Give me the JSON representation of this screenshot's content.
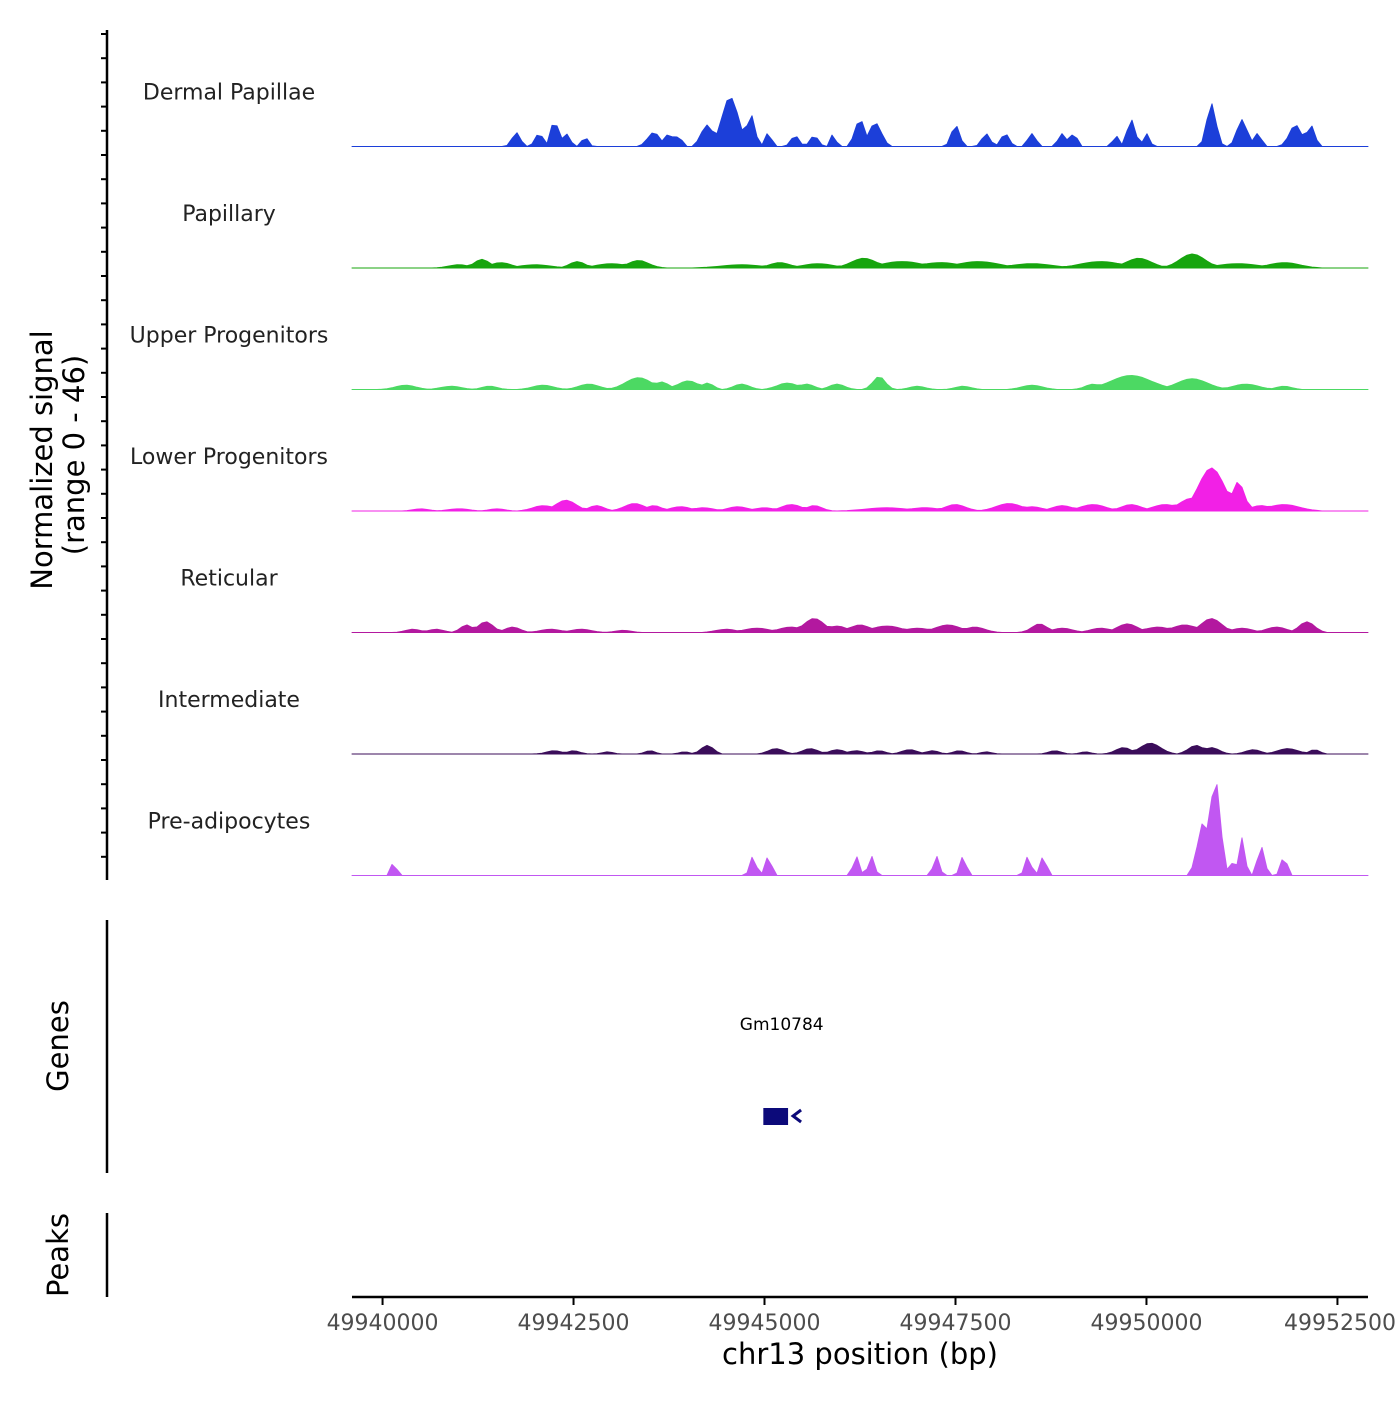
{
  "chart_data": {
    "type": "area",
    "xlabel": "chr13 position (bp)",
    "ylabel_line1": "Normalized signal",
    "ylabel_line2": "(range 0 - 46)",
    "y_range": [
      0,
      46
    ],
    "xlim": [
      49939600,
      49952900
    ],
    "x_ticks": [
      49940000,
      49942500,
      49945000,
      49947500,
      49950000,
      49952500
    ],
    "x_tick_labels": [
      "49940000",
      "49942500",
      "49945000",
      "49947500",
      "49950000",
      "49952500"
    ],
    "tracks": [
      {
        "name": "Dermal Papillae",
        "color": "#1c3fd9",
        "peaks": [
          [
            49941750,
            13,
            8
          ],
          [
            49942050,
            12,
            8
          ],
          [
            49942250,
            25,
            7
          ],
          [
            49942400,
            12,
            8
          ],
          [
            49942650,
            9,
            6
          ],
          [
            49943550,
            13,
            12
          ],
          [
            49943750,
            12,
            8
          ],
          [
            49943880,
            12,
            5
          ],
          [
            49944250,
            20,
            12
          ],
          [
            49944550,
            46,
            16
          ],
          [
            49944820,
            30,
            8
          ],
          [
            49945050,
            13,
            6
          ],
          [
            49945400,
            10,
            8
          ],
          [
            49945650,
            10,
            8
          ],
          [
            49945900,
            12,
            5
          ],
          [
            49946250,
            25,
            10
          ],
          [
            49946450,
            22,
            12
          ],
          [
            49947500,
            20,
            8
          ],
          [
            49947900,
            12,
            8
          ],
          [
            49948150,
            12,
            8
          ],
          [
            49948500,
            12,
            8
          ],
          [
            49948900,
            12,
            8
          ],
          [
            49949050,
            13,
            6
          ],
          [
            49949600,
            10,
            6
          ],
          [
            49949800,
            25,
            8
          ],
          [
            49950000,
            12,
            6
          ],
          [
            49950850,
            40,
            9
          ],
          [
            49951250,
            25,
            10
          ],
          [
            49951450,
            12,
            8
          ],
          [
            49951950,
            20,
            12
          ],
          [
            49952150,
            20,
            8
          ]
        ]
      },
      {
        "name": "Papillary",
        "color": "#17a50e",
        "peaks": [
          [
            49941000,
            3,
            20
          ],
          [
            49941300,
            8,
            15
          ],
          [
            49941550,
            5,
            20
          ],
          [
            49942000,
            3,
            30
          ],
          [
            49942550,
            6,
            15
          ],
          [
            49943000,
            4,
            30
          ],
          [
            49943350,
            7,
            20
          ],
          [
            49944700,
            3,
            40
          ],
          [
            49945200,
            5,
            20
          ],
          [
            49945700,
            4,
            30
          ],
          [
            49946300,
            9,
            25
          ],
          [
            49946800,
            6,
            40
          ],
          [
            49947300,
            5,
            40
          ],
          [
            49947800,
            6,
            40
          ],
          [
            49948500,
            4,
            40
          ],
          [
            49949400,
            6,
            40
          ],
          [
            49949900,
            9,
            25
          ],
          [
            49950600,
            13,
            25
          ],
          [
            49951200,
            4,
            40
          ],
          [
            49951800,
            5,
            30
          ]
        ]
      },
      {
        "name": "Upper Progenitors",
        "color": "#4cd963",
        "peaks": [
          [
            49940300,
            4,
            20
          ],
          [
            49940900,
            3,
            20
          ],
          [
            49941400,
            3,
            15
          ],
          [
            49942100,
            4,
            20
          ],
          [
            49942700,
            5,
            20
          ],
          [
            49943350,
            11,
            25
          ],
          [
            49943650,
            7,
            15
          ],
          [
            49944000,
            8,
            20
          ],
          [
            49944250,
            6,
            12
          ],
          [
            49944700,
            5,
            15
          ],
          [
            49945300,
            6,
            20
          ],
          [
            49945550,
            5,
            15
          ],
          [
            49945950,
            5,
            15
          ],
          [
            49946500,
            12,
            12
          ],
          [
            49947000,
            3,
            15
          ],
          [
            49947600,
            3,
            15
          ],
          [
            49948500,
            4,
            20
          ],
          [
            49949300,
            5,
            15
          ],
          [
            49949800,
            13,
            40
          ],
          [
            49950600,
            10,
            30
          ],
          [
            49951300,
            5,
            25
          ],
          [
            49951800,
            3,
            15
          ]
        ]
      },
      {
        "name": "Lower Progenitors",
        "color": "#f220e6",
        "peaks": [
          [
            49940500,
            2,
            15
          ],
          [
            49941000,
            2,
            20
          ],
          [
            49941500,
            2,
            15
          ],
          [
            49942100,
            5,
            20
          ],
          [
            49942400,
            10,
            20
          ],
          [
            49942800,
            5,
            15
          ],
          [
            49943300,
            7,
            20
          ],
          [
            49943550,
            5,
            15
          ],
          [
            49943900,
            4,
            20
          ],
          [
            49944200,
            3,
            20
          ],
          [
            49944650,
            4,
            20
          ],
          [
            49945000,
            3,
            20
          ],
          [
            49945350,
            6,
            20
          ],
          [
            49945650,
            5,
            15
          ],
          [
            49946600,
            3,
            40
          ],
          [
            49947100,
            3,
            30
          ],
          [
            49947500,
            6,
            20
          ],
          [
            49948200,
            7,
            25
          ],
          [
            49948500,
            4,
            20
          ],
          [
            49948900,
            5,
            20
          ],
          [
            49949300,
            6,
            25
          ],
          [
            49949800,
            6,
            20
          ],
          [
            49950250,
            6,
            25
          ],
          [
            49950600,
            12,
            25
          ],
          [
            49950850,
            40,
            25
          ],
          [
            49951200,
            27,
            12
          ],
          [
            49951500,
            5,
            20
          ],
          [
            49951800,
            6,
            30
          ]
        ]
      },
      {
        "name": "Reticular",
        "color": "#b3189f",
        "peaks": [
          [
            49940400,
            3,
            15
          ],
          [
            49940700,
            3,
            15
          ],
          [
            49941100,
            7,
            12
          ],
          [
            49941350,
            10,
            15
          ],
          [
            49941700,
            5,
            15
          ],
          [
            49942200,
            3,
            20
          ],
          [
            49942600,
            3,
            20
          ],
          [
            49943150,
            2,
            15
          ],
          [
            49944500,
            3,
            20
          ],
          [
            49944900,
            4,
            25
          ],
          [
            49945350,
            5,
            25
          ],
          [
            49945650,
            13,
            20
          ],
          [
            49945950,
            6,
            20
          ],
          [
            49946250,
            7,
            20
          ],
          [
            49946600,
            6,
            30
          ],
          [
            49947000,
            4,
            25
          ],
          [
            49947400,
            7,
            25
          ],
          [
            49947750,
            5,
            20
          ],
          [
            49948600,
            8,
            15
          ],
          [
            49948900,
            4,
            20
          ],
          [
            49949400,
            4,
            20
          ],
          [
            49949750,
            8,
            20
          ],
          [
            49950150,
            5,
            25
          ],
          [
            49950500,
            7,
            25
          ],
          [
            49950850,
            13,
            20
          ],
          [
            49951250,
            4,
            20
          ],
          [
            49951700,
            5,
            20
          ],
          [
            49952100,
            10,
            15
          ]
        ]
      },
      {
        "name": "Intermediate",
        "color": "#3b0d5a",
        "peaks": [
          [
            49942250,
            3,
            15
          ],
          [
            49942500,
            3,
            12
          ],
          [
            49942950,
            2,
            10
          ],
          [
            49943500,
            3,
            10
          ],
          [
            49943950,
            2,
            10
          ],
          [
            49944250,
            8,
            12
          ],
          [
            49945150,
            5,
            15
          ],
          [
            49945600,
            5,
            15
          ],
          [
            49945950,
            4,
            15
          ],
          [
            49946200,
            3,
            15
          ],
          [
            49946500,
            3,
            12
          ],
          [
            49946900,
            4,
            15
          ],
          [
            49947200,
            3,
            12
          ],
          [
            49947550,
            3,
            12
          ],
          [
            49947900,
            2,
            10
          ],
          [
            49948800,
            3,
            12
          ],
          [
            49949200,
            2,
            10
          ],
          [
            49949700,
            6,
            15
          ],
          [
            49950050,
            10,
            20
          ],
          [
            49950650,
            8,
            15
          ],
          [
            49950850,
            6,
            15
          ],
          [
            49951400,
            4,
            15
          ],
          [
            49951850,
            5,
            20
          ],
          [
            49952200,
            4,
            10
          ]
        ]
      },
      {
        "name": "Pre-adipocytes",
        "color": "#c157f2",
        "peaks": [
          [
            49940150,
            17,
            4
          ],
          [
            49944850,
            18,
            6
          ],
          [
            49945050,
            18,
            6
          ],
          [
            49946200,
            18,
            6
          ],
          [
            49946400,
            18,
            6
          ],
          [
            49947250,
            18,
            6
          ],
          [
            49947600,
            18,
            6
          ],
          [
            49948450,
            18,
            6
          ],
          [
            49948650,
            18,
            6
          ],
          [
            49950750,
            50,
            12
          ],
          [
            49950900,
            90,
            10
          ],
          [
            49951150,
            15,
            6
          ],
          [
            49951250,
            35,
            6
          ],
          [
            49951500,
            27,
            7
          ],
          [
            49951800,
            18,
            6
          ]
        ]
      }
    ],
    "genes_label": "Genes",
    "peaks_label": "Peaks",
    "genes": [
      {
        "name": "Gm10784",
        "start": 49945050,
        "end": 49945400,
        "strand": "-"
      }
    ]
  }
}
